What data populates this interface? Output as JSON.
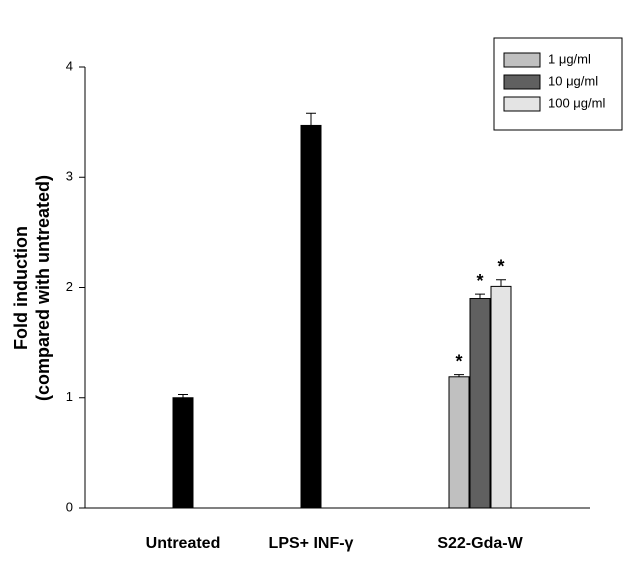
{
  "chart_data": {
    "type": "bar",
    "ylabel": [
      "Fold induction",
      "(compared with untreated)"
    ],
    "categories": [
      "Untreated",
      "LPS+ INF-γ",
      "S22-Gda-W"
    ],
    "values": [
      1.0,
      3.47,
      null
    ],
    "errors": [
      0.03,
      0.11,
      null
    ],
    "color": "#000000",
    "series": [
      {
        "name": "1 μg/ml",
        "color": "#c0c0c0",
        "values": [
          null,
          null,
          1.19
        ],
        "errors": [
          null,
          null,
          0.02
        ],
        "annotation": "*"
      },
      {
        "name": "10 μg/ml",
        "color": "#606060",
        "values": [
          null,
          null,
          1.9
        ],
        "errors": [
          null,
          null,
          0.04
        ],
        "annotation": "*"
      },
      {
        "name": "100 μg/ml",
        "color": "#e4e4e4",
        "values": [
          null,
          null,
          2.01
        ],
        "errors": [
          null,
          null,
          0.06
        ],
        "annotation": "*"
      }
    ],
    "ylim": [
      0,
      4
    ],
    "yticks": [
      0,
      1,
      2,
      3,
      4
    ],
    "grid": false,
    "legend": "upper right"
  }
}
